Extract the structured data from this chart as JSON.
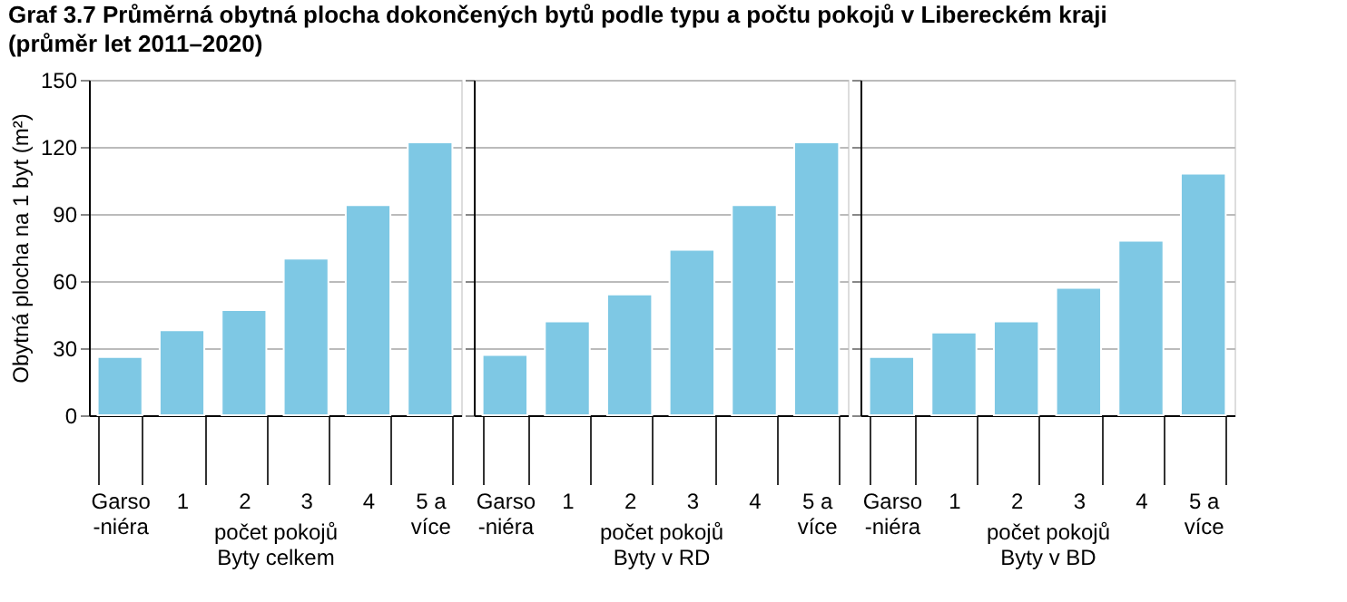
{
  "chart_data": [
    {
      "type": "bar",
      "title": "Graf 3.7 Průměrná obytná plocha dokončených bytů podle typu a počtu pokojů v Libereckém kraji",
      "subtitle": "(průměr let 2011–2020)",
      "ylabel": "Obytná plocha na 1 byt (m²)",
      "xlabel": "počet pokojů",
      "annotations": [
        "Byty celkem"
      ],
      "categories": [
        "Garso\n-niéra",
        "1",
        "2",
        "3",
        "4",
        "5 a\nvíce"
      ],
      "values": [
        26,
        38,
        47,
        70,
        94,
        122
      ],
      "color": "#7ec8e4",
      "ylim": [
        0,
        150
      ],
      "yticks": [
        0,
        30,
        60,
        90,
        120,
        150
      ],
      "grid": "y"
    },
    {
      "type": "bar",
      "xlabel": "počet pokojů",
      "annotations": [
        "Byty v RD"
      ],
      "categories": [
        "Garso\n-niéra",
        "1",
        "2",
        "3",
        "4",
        "5 a\nvíce"
      ],
      "values": [
        27,
        42,
        54,
        74,
        94,
        122
      ],
      "color": "#7ec8e4",
      "ylim": [
        0,
        150
      ],
      "yticks": [
        0,
        30,
        60,
        90,
        120,
        150
      ],
      "grid": "y",
      "tick_labels": "x"
    },
    {
      "type": "bar",
      "xlabel": "počet pokojů",
      "annotations": [
        "Byty v BD"
      ],
      "categories": [
        "Garso\n-niéra",
        "1",
        "2",
        "3",
        "4",
        "5 a\nvíce"
      ],
      "values": [
        26,
        37,
        42,
        57,
        78,
        108
      ],
      "color": "#7ec8e4",
      "ylim": [
        0,
        150
      ],
      "yticks": [
        0,
        30,
        60,
        90,
        120,
        150
      ],
      "grid": "y",
      "tick_labels": "x"
    }
  ]
}
